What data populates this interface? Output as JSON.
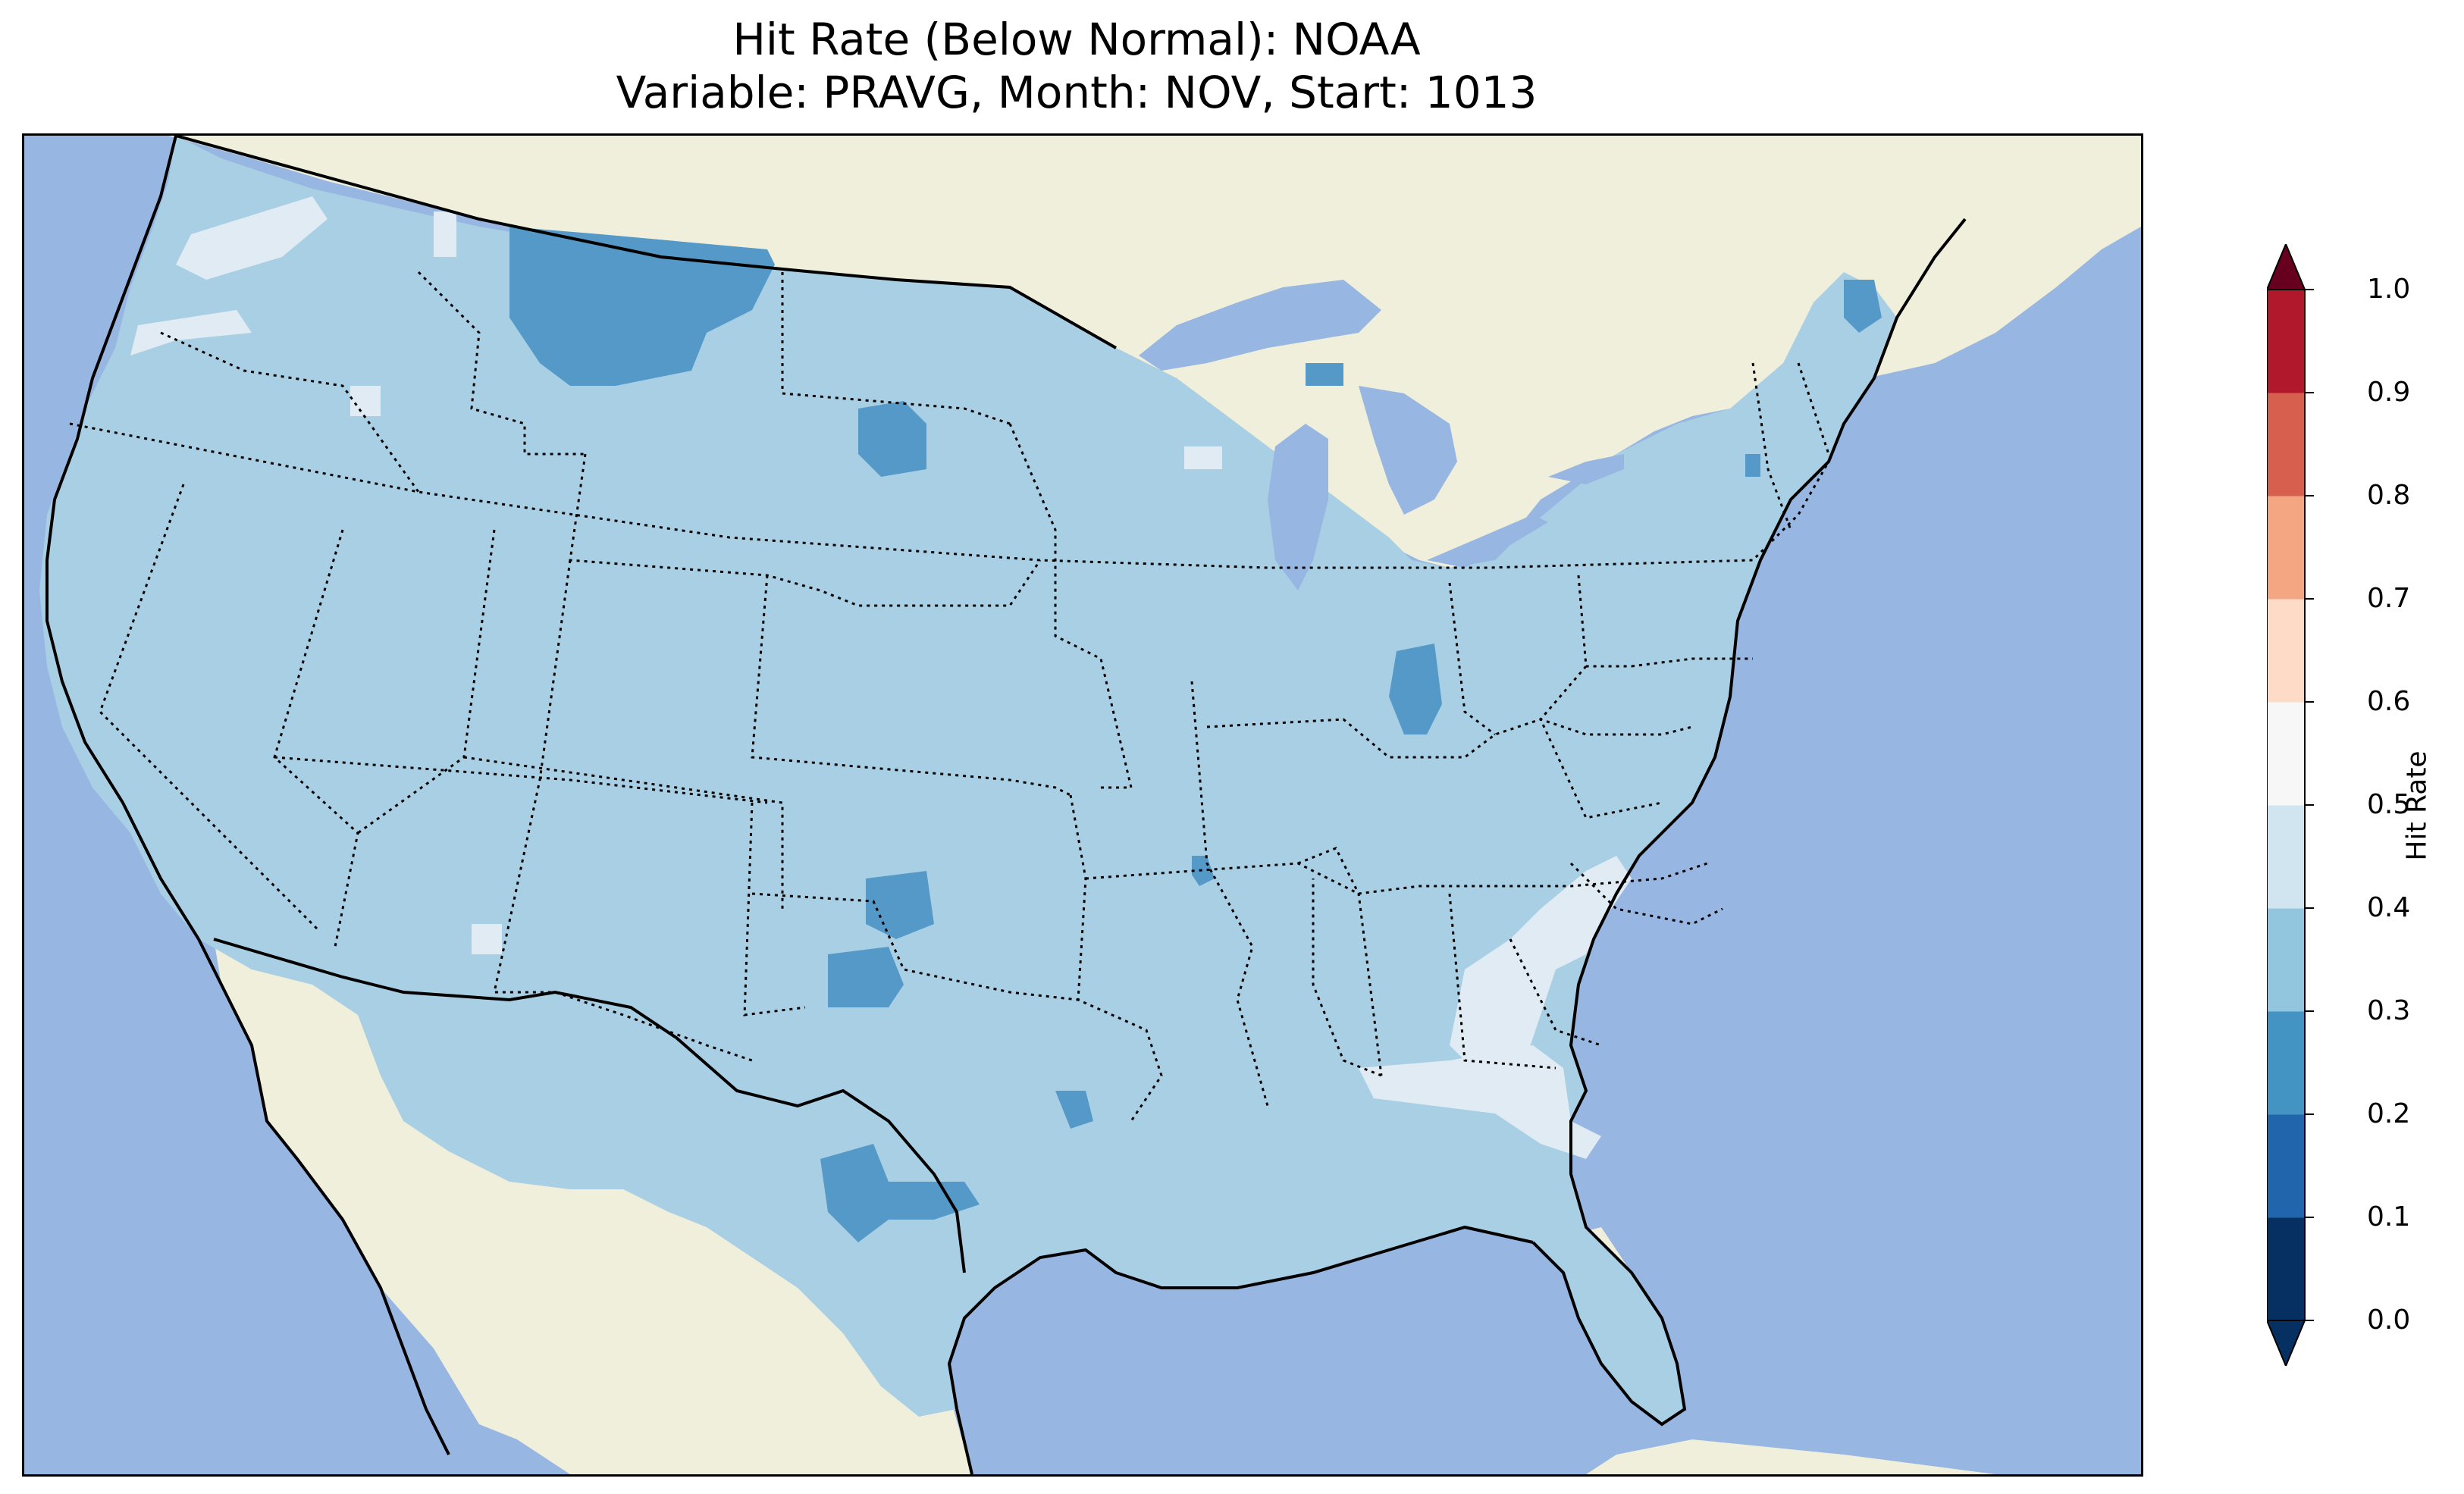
{
  "title": {
    "line1": "Hit Rate (Below Normal): NOAA",
    "line2": "Variable: PRAVG, Month: NOV, Start: 1013"
  },
  "colorbar": {
    "label": "Hit Rate",
    "ticks": [
      "0.0",
      "0.1",
      "0.2",
      "0.3",
      "0.4",
      "0.5",
      "0.6",
      "0.7",
      "0.8",
      "0.9",
      "1.0"
    ],
    "colors": [
      "#053061",
      "#2166ac",
      "#4393c3",
      "#92c5de",
      "#d1e5f0",
      "#f7f7f7",
      "#fddbc7",
      "#f4a582",
      "#d6604d",
      "#b2182b",
      "#67001f"
    ],
    "extend": "both"
  },
  "map": {
    "ocean_color": "#97b6e1",
    "land_color": "#efefdb",
    "field_levels": [
      {
        "range": "0.2-0.3",
        "color": "#5499c7"
      },
      {
        "range": "0.3-0.4",
        "color": "#a9cfe4"
      },
      {
        "range": "0.4-0.5",
        "color": "#e1ebf3"
      }
    ],
    "dominant_hit_rate": "0.3-0.4"
  }
}
